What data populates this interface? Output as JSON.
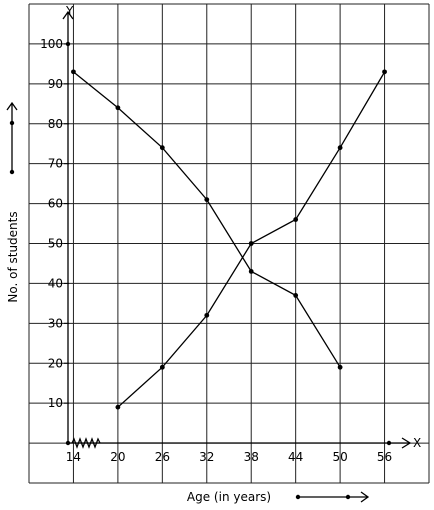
{
  "chart_data": {
    "type": "line",
    "title": "",
    "xlabel": "Age (in years)",
    "ylabel": "No. of students",
    "x_axis_letter": "X",
    "y_axis_letter": "Y",
    "x_ticks": [
      "14",
      "20",
      "26",
      "32",
      "38",
      "44",
      "50",
      "56"
    ],
    "y_ticks": [
      "10",
      "20",
      "30",
      "40",
      "50",
      "60",
      "70",
      "80",
      "90",
      "100"
    ],
    "xlim": [
      8,
      62
    ],
    "ylim": [
      -10,
      110
    ],
    "grid": true,
    "legend": "none",
    "series": [
      {
        "x": [
          14,
          20,
          26,
          32,
          38,
          44,
          50
        ],
        "y": [
          93,
          84,
          74,
          61,
          43,
          37,
          19
        ]
      },
      {
        "x": [
          20,
          26,
          32,
          38,
          44,
          50,
          56
        ],
        "y": [
          9,
          19,
          32,
          50,
          56,
          74,
          93
        ]
      }
    ],
    "color": "#000000"
  }
}
